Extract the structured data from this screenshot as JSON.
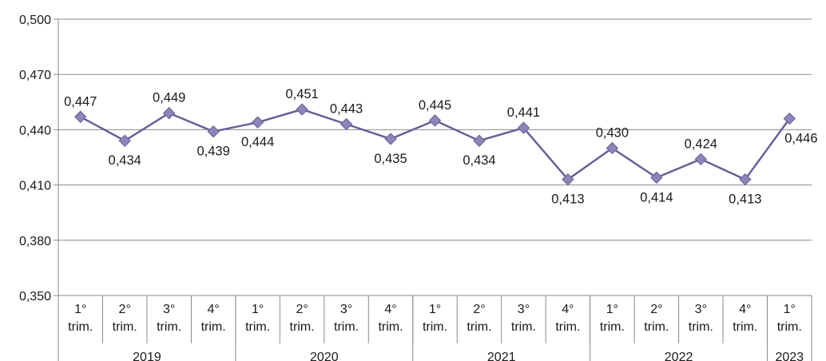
{
  "chart_data": {
    "type": "line",
    "title": "",
    "xlabel": "",
    "ylabel": "",
    "ylim": [
      0.35,
      0.5
    ],
    "yticks": [
      0.35,
      0.38,
      0.41,
      0.44,
      0.47,
      0.5
    ],
    "ytick_labels": [
      "0,350",
      "0,380",
      "0,410",
      "0,440",
      "0,470",
      "0,500"
    ],
    "grid": true,
    "legend": "none",
    "line_color": "#6b5e99",
    "marker_color": "#8f84b8",
    "marker": "diamond",
    "categories": [
      "1° trim. 2019",
      "2° trim. 2019",
      "3° trim. 2019",
      "4° trim. 2019",
      "1° trim. 2020",
      "2° trim. 2020",
      "3° trim. 2020",
      "4° trim. 2020",
      "1° trim. 2021",
      "2° trim. 2021",
      "3° trim. 2021",
      "4° trim. 2021",
      "1° trim. 2022",
      "2° trim. 2022",
      "3° trim. 2022",
      "4° trim. 2022",
      "1° trim. 2023"
    ],
    "category_lines": [
      [
        "1°",
        "trim."
      ],
      [
        "2°",
        "trim."
      ],
      [
        "3°",
        "trim."
      ],
      [
        "4°",
        "trim."
      ],
      [
        "1°",
        "trim."
      ],
      [
        "2°",
        "trim."
      ],
      [
        "3°",
        "trim."
      ],
      [
        "4°",
        "trim."
      ],
      [
        "1°",
        "trim."
      ],
      [
        "2°",
        "trim."
      ],
      [
        "3°",
        "trim."
      ],
      [
        "4°",
        "trim."
      ],
      [
        "1°",
        "trim."
      ],
      [
        "2°",
        "trim."
      ],
      [
        "3°",
        "trim."
      ],
      [
        "4°",
        "trim."
      ],
      [
        "1°",
        "trim."
      ]
    ],
    "years": [
      {
        "label": "2019",
        "count": 4
      },
      {
        "label": "2020",
        "count": 4
      },
      {
        "label": "2021",
        "count": 4
      },
      {
        "label": "2022",
        "count": 4
      },
      {
        "label": "2023",
        "count": 1
      }
    ],
    "series": [
      {
        "values": [
          0.447,
          0.434,
          0.449,
          0.439,
          0.444,
          0.451,
          0.443,
          0.435,
          0.445,
          0.434,
          0.441,
          0.413,
          0.43,
          0.414,
          0.424,
          0.413,
          0.446
        ],
        "data_labels": [
          "0,447",
          "0,434",
          "0,449",
          "0,439",
          "0,444",
          "0,451",
          "0,443",
          "0,435",
          "0,445",
          "0,434",
          "0,441",
          "0,413",
          "0,430",
          "0,414",
          "0,424",
          "0,413",
          "0,446"
        ],
        "label_positions": [
          "above",
          "below",
          "above",
          "below",
          "below",
          "above",
          "above",
          "below",
          "above",
          "below",
          "above",
          "below",
          "above",
          "below",
          "above",
          "below",
          "right"
        ]
      }
    ]
  }
}
